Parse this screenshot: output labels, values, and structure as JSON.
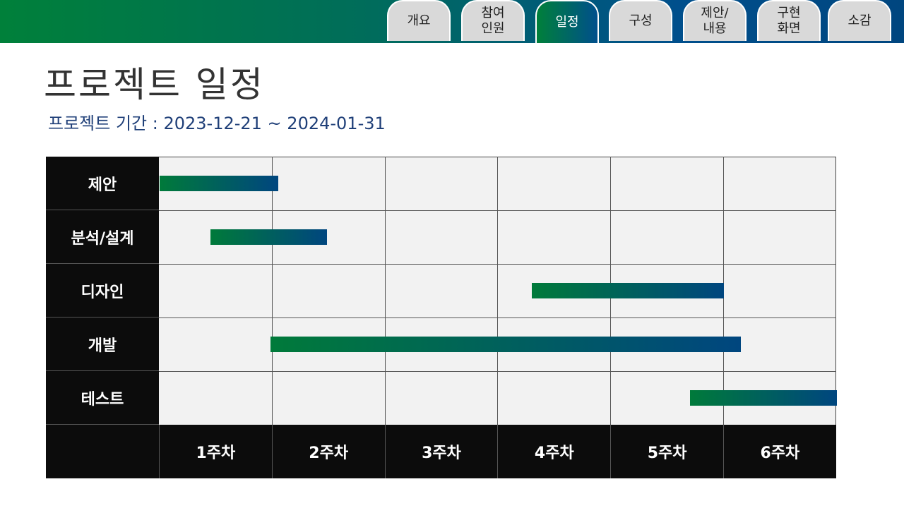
{
  "tabs": [
    {
      "label": "개요",
      "active": false
    },
    {
      "label": "참여\n인원",
      "active": false
    },
    {
      "label": "일정",
      "active": true
    },
    {
      "label": "구성",
      "active": false
    },
    {
      "label": "제안/\n내용",
      "active": false
    },
    {
      "label": "구현\n화면",
      "active": false
    },
    {
      "label": "소감",
      "active": false
    }
  ],
  "page_title": "프로젝트 일정",
  "period": "프로젝트 기간 : 2023-12-21 ~ 2024-01-31",
  "colors": {
    "gradient_start": "#007a3a",
    "gradient_end": "#00467f",
    "label_bg": "#0c0c0c",
    "grid_bg": "#f2f2f2"
  },
  "schedule": {
    "weeks": [
      "1주차",
      "2주차",
      "3주차",
      "4주차",
      "5주차",
      "6주차"
    ],
    "tasks": [
      {
        "name": "제안",
        "start_week": 0.0,
        "end_week": 1.05
      },
      {
        "name": "분석/설계",
        "start_week": 0.45,
        "end_week": 1.48
      },
      {
        "name": "디자인",
        "start_week": 3.3,
        "end_week": 5.0
      },
      {
        "name": "개발",
        "start_week": 0.98,
        "end_week": 5.15
      },
      {
        "name": "테스트",
        "start_week": 4.7,
        "end_week": 6.0
      }
    ]
  }
}
